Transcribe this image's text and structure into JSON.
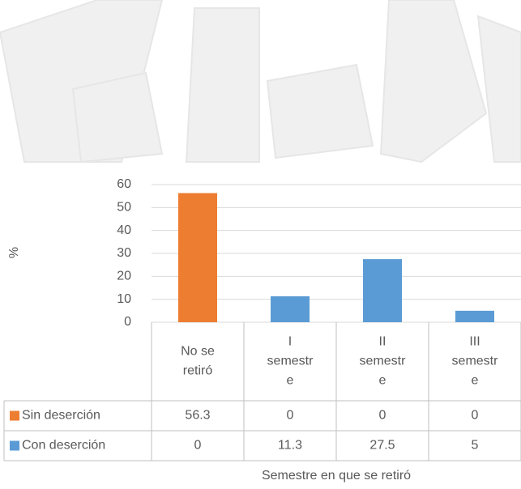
{
  "chart_data": {
    "type": "bar",
    "categories": [
      "No se retiró",
      "I semestre",
      "II semestre",
      "III semestre"
    ],
    "series": [
      {
        "name": "Sin deserción",
        "color": "#ed7d31",
        "values": [
          56.3,
          0,
          0,
          0
        ]
      },
      {
        "name": "Con deserción",
        "color": "#5b9bd5",
        "values": [
          0,
          11.3,
          27.5,
          5
        ]
      }
    ],
    "ylabel": "%",
    "xlabel": "Semestre en que se retiró",
    "ylim": [
      0,
      60
    ],
    "yticks": [
      0,
      10,
      20,
      30,
      40,
      50,
      60
    ],
    "grid": true
  }
}
